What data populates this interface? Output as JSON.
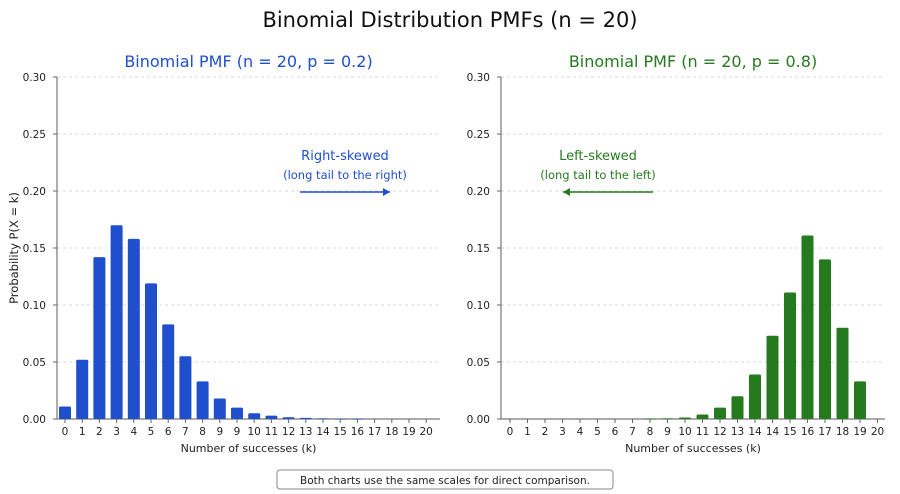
{
  "title": "Binomial Distribution PMFs (n = 20)",
  "footnote": "Both charts use the same scales for direct comparison.",
  "chart_data": [
    {
      "type": "bar",
      "title": "Binomial PMF (n = 20, p = 0.2)",
      "xlabel": "Number of successes (k)",
      "ylabel": "Probability P(X = k)",
      "ylim": [
        0,
        0.3
      ],
      "yticks": [
        "0.00",
        "0.05",
        "0.10",
        "0.15",
        "0.20",
        "0.25",
        "0.30"
      ],
      "grid": true,
      "color": "#1f4fcc",
      "categories": [
        "0",
        "1",
        "2",
        "3",
        "4",
        "5",
        "6",
        "7",
        "8",
        "9",
        "9",
        "10",
        "11",
        "12",
        "13",
        "14",
        "15",
        "16",
        "17",
        "18",
        "19",
        "20"
      ],
      "values": [
        0.011,
        0.052,
        0.142,
        0.17,
        0.158,
        0.119,
        0.083,
        0.055,
        0.033,
        0.018,
        0.01,
        0.005,
        0.003,
        0.0015,
        0.001,
        0.0005,
        0.0002,
        0.0001,
        0,
        0,
        0,
        0
      ],
      "annotation": {
        "title": "Right-skewed",
        "subtitle": "(long tail to the right)",
        "arrow": "right"
      }
    },
    {
      "type": "bar",
      "title": "Binomial PMF (n = 20, p = 0.8)",
      "xlabel": "Number of successes (k)",
      "ylabel": "",
      "ylim": [
        0,
        0.3
      ],
      "yticks": [
        "0.00",
        "0.05",
        "0.10",
        "0.15",
        "0.20",
        "0.25",
        "0.30"
      ],
      "grid": true,
      "color": "#267a1e",
      "categories": [
        "0",
        "1",
        "2",
        "3",
        "4",
        "5",
        "6",
        "7",
        "8",
        "9",
        "10",
        "11",
        "12",
        "13",
        "14",
        "14",
        "15",
        "16",
        "17",
        "18",
        "19",
        "20"
      ],
      "values": [
        0,
        0,
        0,
        0,
        0,
        0,
        0,
        0,
        0.0002,
        0.0005,
        0.0013,
        0.004,
        0.01,
        0.02,
        0.039,
        0.073,
        0.111,
        0.161,
        0.14,
        0.08,
        0.033,
        0
      ],
      "annotation": {
        "title": "Left-skewed",
        "subtitle": "(long tail to the left)",
        "arrow": "left"
      }
    }
  ]
}
